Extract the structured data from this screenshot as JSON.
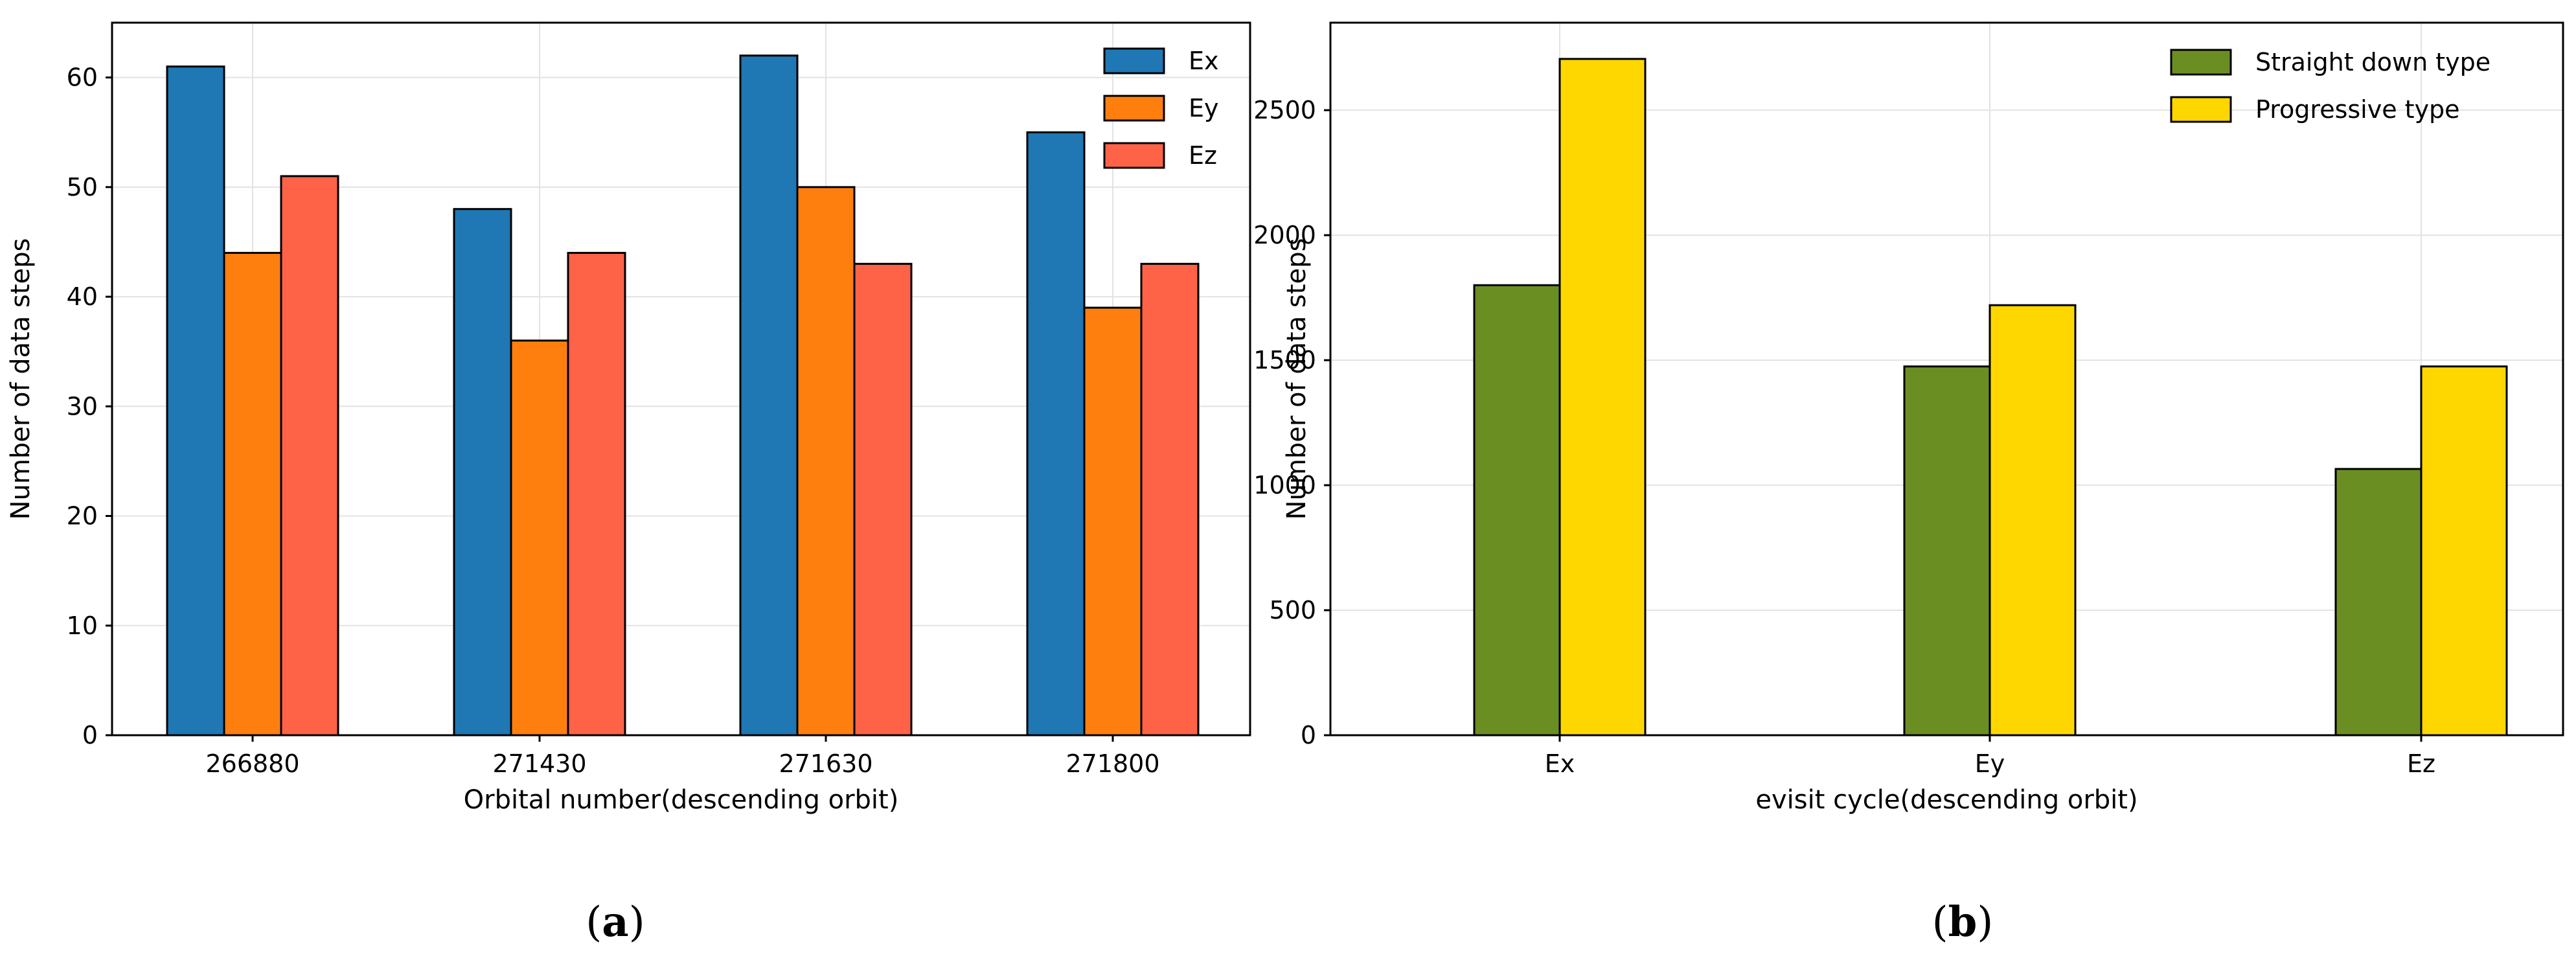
{
  "chart_data": [
    {
      "type": "bar",
      "panel_label": "a",
      "title": "",
      "xlabel": "Orbital number(descending orbit)",
      "ylabel": "Number of data steps",
      "categories": [
        "266880",
        "271430",
        "271630",
        "271800"
      ],
      "series": [
        {
          "name": "Ex",
          "color": "#1f77b4",
          "values": [
            61,
            48,
            62,
            55
          ]
        },
        {
          "name": "Ey",
          "color": "#ff7f0e",
          "values": [
            44,
            36,
            50,
            39
          ]
        },
        {
          "name": "Ez",
          "color": "#ff6347",
          "values": [
            51,
            44,
            43,
            43
          ]
        }
      ],
      "ylim": [
        0,
        65
      ],
      "yticks": [
        0,
        10,
        20,
        30,
        40,
        50,
        60
      ],
      "grid": true,
      "legend_position": "top-right"
    },
    {
      "type": "bar",
      "panel_label": "b",
      "title": "",
      "xlabel": "evisit cycle(descending orbit)",
      "ylabel": "Number of data steps",
      "categories": [
        "Ex",
        "Ey",
        "Ez"
      ],
      "series": [
        {
          "name": "Straight down type",
          "color": "#6b8e23",
          "values": [
            1800,
            1475,
            1065
          ]
        },
        {
          "name": "Progressive type",
          "color": "#ffd700",
          "values": [
            2705,
            1720,
            1475
          ]
        }
      ],
      "ylim": [
        0,
        2850
      ],
      "yticks": [
        0,
        500,
        1000,
        1500,
        2000,
        2500
      ],
      "grid": true,
      "legend_position": "top-right"
    }
  ]
}
